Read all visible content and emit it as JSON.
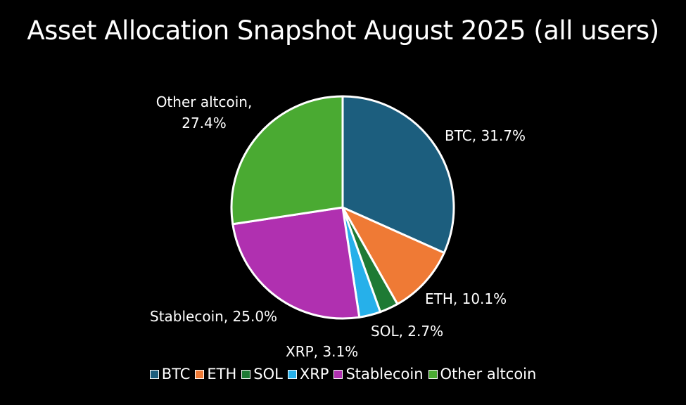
{
  "chart_data": {
    "type": "pie",
    "title": "Asset Allocation Snapshot August 2025 (all users)",
    "slices": [
      {
        "name": "BTC",
        "value": 31.7,
        "label": "BTC, 31.7%",
        "color": "#1c5e7e"
      },
      {
        "name": "ETH",
        "value": 10.1,
        "label": "ETH, 10.1%",
        "color": "#ef7a35"
      },
      {
        "name": "SOL",
        "value": 2.7,
        "label": "SOL, 2.7%",
        "color": "#1e7a34"
      },
      {
        "name": "XRP",
        "value": 3.1,
        "label": "XRP, 3.1%",
        "color": "#26b0ea"
      },
      {
        "name": "Stablecoin",
        "value": 25.0,
        "label": "Stablecoin, 25.0%",
        "color": "#b030b0"
      },
      {
        "name": "Other altcoin",
        "value": 27.4,
        "label_lines": [
          "Other altcoin,",
          "27.4%"
        ],
        "color": "#4aaa32"
      }
    ],
    "legend": {
      "position": "bottom",
      "items": [
        "BTC",
        "ETH",
        "SOL",
        "XRP",
        "Stablecoin",
        "Other altcoin"
      ]
    }
  }
}
